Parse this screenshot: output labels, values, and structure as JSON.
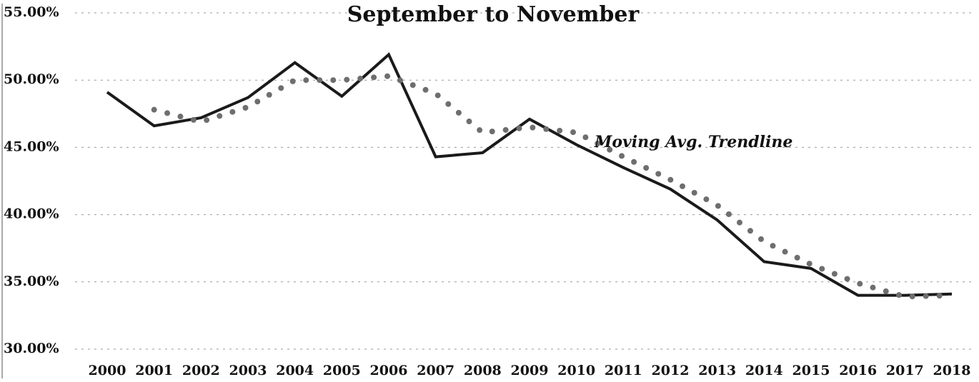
{
  "chart_data": {
    "type": "line",
    "title": "September to November",
    "annotations": [
      "Moving Avg. Trendline"
    ],
    "categories": [
      "2000",
      "2001",
      "2002",
      "2003",
      "2004",
      "2005",
      "2006",
      "2007",
      "2008",
      "2009",
      "2010",
      "2011",
      "2012",
      "2013",
      "2014",
      "2015",
      "2016",
      "2017",
      "2018"
    ],
    "series": [
      {
        "color": "#1a1a1a",
        "style": "solid",
        "values": [
          49.1,
          46.6,
          47.2,
          48.7,
          51.3,
          48.8,
          51.9,
          44.3,
          44.6,
          47.1,
          45.2,
          43.5,
          41.9,
          39.6,
          36.5,
          36.0,
          34.0,
          34.0,
          34.1
        ]
      },
      {
        "color": "#6e6e6e",
        "style": "dotted",
        "values": [
          null,
          47.8,
          46.9,
          48.0,
          50.0,
          50.0,
          50.3,
          49.0,
          46.1,
          46.5,
          46.1,
          44.3,
          42.6,
          40.7,
          38.0,
          36.3,
          34.9,
          33.9,
          34.0
        ]
      }
    ],
    "ylim": [
      30,
      55
    ],
    "yticks": [
      {
        "value": 30,
        "label": "30.00%"
      },
      {
        "value": 35,
        "label": "35.00%"
      },
      {
        "value": 40,
        "label": "40.00%"
      },
      {
        "value": 45,
        "label": "45.00%"
      },
      {
        "value": 50,
        "label": "50.00%"
      },
      {
        "value": 55,
        "label": "55.00%"
      }
    ],
    "grid": true
  }
}
